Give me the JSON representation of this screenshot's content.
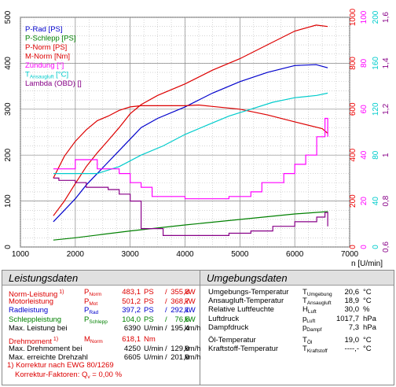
{
  "chart_data": {
    "type": "line",
    "xlabel": "n [U/min]",
    "x_ticks": [
      1000,
      2000,
      3000,
      4000,
      5000,
      6000,
      7000
    ],
    "left_axis": {
      "ticks": [
        0,
        100,
        200,
        300,
        400,
        500
      ]
    },
    "right_axes": [
      {
        "name": "nm",
        "color": "#ee0000",
        "ticks": [
          0,
          200,
          400,
          600,
          800,
          1000
        ]
      },
      {
        "name": "ign",
        "color": "#ff00ff",
        "ticks": [
          0,
          20,
          40,
          60,
          80,
          100
        ]
      },
      {
        "name": "temp",
        "color": "#00cccc",
        "ticks": [
          0,
          40,
          80,
          120,
          160,
          200
        ]
      },
      {
        "name": "lambda",
        "color": "#880088",
        "ticks": [
          "0,6",
          "0,8",
          "1",
          "1,2",
          "1,4",
          "1,6"
        ]
      }
    ],
    "legend": [
      {
        "label": "P-Rad [PS]",
        "color": "#0000cc"
      },
      {
        "label": "P-Schlepp [PS]",
        "color": "#008000"
      },
      {
        "label": "P-Norm [PS]",
        "color": "#dd0000"
      },
      {
        "label": "M-Norm [Nm]",
        "color": "#dd0000"
      },
      {
        "label": "Zündung [°]",
        "color": "#ff00ff"
      },
      {
        "label_main": "T",
        "label_sub": "Ansaugluft",
        "label_end": " [°C]",
        "color": "#00cccc"
      },
      {
        "label": "Lambda (OBD) []",
        "color": "#880088"
      }
    ],
    "series": [
      {
        "name": "P-Norm [PS]",
        "color": "#dd0000",
        "x": [
          1600,
          1800,
          2000,
          2200,
          2400,
          2600,
          2800,
          3000,
          3200,
          3500,
          4000,
          4500,
          5000,
          5500,
          6000,
          6390,
          6600
        ],
        "y": [
          68,
          100,
          138,
          175,
          205,
          232,
          260,
          290,
          310,
          330,
          355,
          385,
          410,
          440,
          470,
          483,
          480
        ]
      },
      {
        "name": "P-Rad [PS]",
        "color": "#0000cc",
        "x": [
          1600,
          1800,
          2000,
          2200,
          2400,
          2600,
          2800,
          3000,
          3200,
          3500,
          4000,
          4500,
          5000,
          5500,
          6000,
          6390,
          6600
        ],
        "y": [
          55,
          80,
          105,
          135,
          160,
          185,
          210,
          235,
          260,
          280,
          305,
          335,
          360,
          380,
          395,
          397,
          390
        ]
      },
      {
        "name": "M-Norm [Nm]",
        "color": "#dd0000",
        "axis": "nm",
        "x": [
          1600,
          1800,
          2000,
          2200,
          2400,
          2600,
          2800,
          3000,
          3200,
          3500,
          4000,
          4250,
          4500,
          5000,
          5500,
          6000,
          6500,
          6600
        ],
        "y": [
          300,
          395,
          460,
          510,
          550,
          570,
          595,
          610,
          615,
          615,
          615,
          618,
          612,
          600,
          575,
          545,
          515,
          495
        ]
      },
      {
        "name": "P-Schlepp [PS]",
        "color": "#008000",
        "x": [
          1600,
          2000,
          3000,
          4000,
          5000,
          6000,
          6605
        ],
        "y": [
          15,
          20,
          35,
          48,
          60,
          72,
          77
        ]
      },
      {
        "name": "T Ansaugluft [°C]",
        "color": "#00cccc",
        "axis": "temp",
        "x": [
          1600,
          2000,
          2400,
          2800,
          3200,
          3600,
          4000,
          4400,
          4800,
          5200,
          5600,
          6000,
          6400,
          6600
        ],
        "y": [
          64,
          64,
          64,
          70,
          80,
          88,
          98,
          106,
          114,
          120,
          126,
          130,
          132,
          134
        ]
      },
      {
        "name": "Zündung [°]",
        "color": "#ff00ff",
        "axis": "ign",
        "x": [
          1600,
          1800,
          2000,
          2200,
          2400,
          2600,
          2800,
          3000,
          3200,
          3400,
          3600,
          4000,
          4400,
          4800,
          5200,
          5400,
          5600,
          5800,
          6000,
          6200,
          6400,
          6550,
          6600
        ],
        "y": [
          34,
          34,
          38,
          38,
          34,
          34,
          32,
          28,
          26,
          22,
          22,
          21,
          21,
          22,
          24,
          28,
          28,
          32,
          36,
          40,
          48,
          56,
          48
        ]
      },
      {
        "name": "Lambda (OBD) []",
        "color": "#880088",
        "axis": "lambda",
        "x": [
          1600,
          1700,
          1800,
          2000,
          2200,
          2400,
          2600,
          2800,
          3000,
          3200,
          3600,
          4000,
          4400,
          4800,
          5200,
          5600,
          6000,
          6400,
          6550,
          6600
        ],
        "y": [
          0.9,
          0.89,
          0.89,
          0.88,
          0.86,
          0.86,
          0.85,
          0.83,
          0.8,
          0.68,
          0.65,
          0.65,
          0.65,
          0.66,
          0.67,
          0.69,
          0.71,
          0.73,
          0.75,
          0.69
        ]
      }
    ]
  },
  "panel": {
    "left_title": "Leistungsdaten",
    "right_title": "Umgebungsdaten",
    "rows_left": [
      {
        "label": "Norm-Leistung",
        "note": "1)",
        "sym": "P",
        "symsub": "Norm",
        "v1": "483,1",
        "u1": "PS",
        "slash": "/",
        "v2": "355,3",
        "u2": "kW",
        "cls": "red"
      },
      {
        "label": "Motorleistung",
        "sym": "P",
        "symsub": "Mot",
        "v1": "501,2",
        "u1": "PS",
        "slash": "/",
        "v2": "368,7",
        "u2": "kW",
        "cls": "red"
      },
      {
        "label": "Radleistung",
        "sym": "P",
        "symsub": "Rad",
        "v1": "397,2",
        "u1": "PS",
        "slash": "/",
        "v2": "292,1",
        "u2": "kW",
        "cls": "blu"
      },
      {
        "label": "Schleppleistung",
        "sym": "P",
        "symsub": "Schlepp",
        "v1": "104,0",
        "u1": "PS",
        "slash": "/",
        "v2": "76,5",
        "u2": "kW",
        "cls": "grn"
      },
      {
        "label": "Max. Leistung bei",
        "v1": "6390",
        "u1": "U/min",
        "slash": "/",
        "v2": "195,4",
        "u2": "km/h",
        "cls": "blk"
      }
    ],
    "rows_left2": [
      {
        "label": "Drehmoment",
        "note": "1)",
        "sym": "M",
        "symsub": "Norm",
        "v1": "618,1",
        "u1": "Nm",
        "cls": "red"
      },
      {
        "label": "Max. Drehmoment bei",
        "v1": "4250",
        "u1": "U/min",
        "slash": "/",
        "v2": "129,9",
        "u2": "km/h",
        "cls": "blk"
      },
      {
        "label": "Max. erreichte Drehzahl",
        "v1": "6605",
        "u1": "U/min",
        "slash": "/",
        "v2": "201,9",
        "u2": "km/h",
        "cls": "blk"
      }
    ],
    "foot1": "1) Korrektur nach EWG 80/1269",
    "foot2_label": "Korrektur-Faktoren: Q",
    "foot2_sub": "v",
    "foot2_val": "=    0,00 %",
    "rows_right": [
      {
        "label": "Umgebungs-Temperatur",
        "sym": "T",
        "symsub": "Umgebung",
        "v": "20,6",
        "u": "°C"
      },
      {
        "label": "Ansaugluft-Temperatur",
        "sym": "T",
        "symsub": "Ansaugluft",
        "v": "18,9",
        "u": "°C"
      },
      {
        "label": "Relative Luftfeuchte",
        "sym": "H",
        "symsub": "Luft",
        "v": "30,0",
        "u": "%"
      },
      {
        "label": "Luftdruck",
        "sym": "p",
        "symsub": "Luft",
        "v": "1017,7",
        "u": "hPa"
      },
      {
        "label": "Dampfdruck",
        "sym": "p",
        "symsub": "Dampf",
        "v": "7,3",
        "u": "hPa"
      },
      {
        "label": "Öl-Temperatur",
        "sym": "T",
        "symsub": "Öl",
        "v": "19,0",
        "u": "°C"
      },
      {
        "label": "Kraftstoff-Temperatur",
        "sym": "T",
        "symsub": "Kraftstoff",
        "v": "----,-",
        "u": "°C"
      }
    ]
  }
}
